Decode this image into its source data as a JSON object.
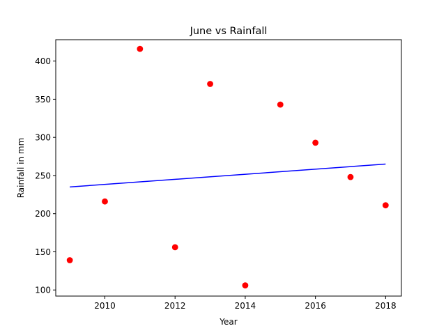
{
  "chart_data": {
    "type": "scatter",
    "title": "June vs Rainfall",
    "xlabel": "Year",
    "ylabel": "Rainfall in mm",
    "xlim": [
      2008.6,
      2018.45
    ],
    "ylim": [
      92,
      428
    ],
    "xticks": [
      2010,
      2012,
      2014,
      2016,
      2018
    ],
    "yticks": [
      100,
      150,
      200,
      250,
      300,
      350,
      400
    ],
    "grid": false,
    "series": [
      {
        "type": "scatter",
        "color": "#ff0000",
        "x": [
          2009,
          2010,
          2011,
          2012,
          2013,
          2014,
          2015,
          2016,
          2017,
          2018
        ],
        "y": [
          139,
          216,
          416,
          156,
          370,
          106,
          343,
          293,
          248,
          211
        ]
      },
      {
        "type": "line",
        "color": "#0000ff",
        "x": [
          2009,
          2018
        ],
        "y": [
          235,
          265
        ]
      }
    ]
  }
}
